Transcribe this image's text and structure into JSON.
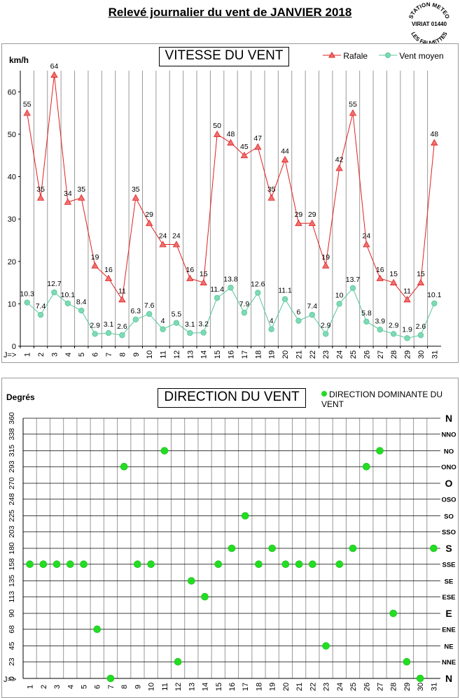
{
  "page": {
    "title": "Relevé journalier du vent de JANVIER 2018",
    "stamp": {
      "top": "STATION METEO",
      "middle": "VIRIAT 01440",
      "bottom": "LES FAUVETTES"
    }
  },
  "colors": {
    "rafale": "#e02020",
    "rafale_marker": "#f07070",
    "vent_moyen": "#55c799",
    "vent_moyen_marker": "#7fd9b4",
    "direction": "#22dd22",
    "grid": "#999999"
  },
  "chart_data": [
    {
      "type": "line",
      "title": "VITESSE DU VENT",
      "ylabel": "km/h",
      "xlabel": "J=>",
      "ylim": [
        0,
        65
      ],
      "yticks": [
        0,
        10,
        20,
        30,
        40,
        50,
        60
      ],
      "grid": "vertical",
      "legend_position": "top-right",
      "x": [
        1,
        2,
        3,
        4,
        5,
        6,
        7,
        8,
        9,
        10,
        11,
        12,
        13,
        14,
        15,
        16,
        17,
        18,
        19,
        20,
        21,
        22,
        23,
        24,
        25,
        26,
        27,
        28,
        29,
        30,
        31
      ],
      "series": [
        {
          "name": "Rafale",
          "marker": "triangle",
          "values": [
            55,
            35,
            64,
            34,
            35,
            19,
            16,
            11,
            35,
            29,
            24,
            24,
            16,
            15,
            50,
            48,
            45,
            47,
            35,
            44,
            29,
            29,
            19,
            42,
            55,
            24,
            16,
            15,
            11,
            15,
            48
          ]
        },
        {
          "name": "Vent moyen",
          "marker": "circle",
          "values": [
            10.3,
            7.4,
            12.7,
            10.1,
            8.4,
            2.9,
            3.1,
            2.6,
            6.3,
            7.6,
            4,
            5.5,
            3.1,
            3.2,
            11.4,
            13.8,
            7.9,
            12.6,
            4,
            11.1,
            6,
            7.4,
            2.9,
            10,
            13.7,
            5.8,
            3.9,
            2.9,
            1.9,
            2.6,
            10.1
          ]
        }
      ]
    },
    {
      "type": "scatter",
      "title": "DIRECTION DU VENT",
      "ylabel": "Degrés",
      "xlabel": "J=>",
      "ylim": [
        0,
        360
      ],
      "yticks": [
        0,
        23,
        45,
        68,
        90,
        113,
        135,
        158,
        180,
        203,
        225,
        248,
        270,
        293,
        315,
        338,
        360
      ],
      "direction_labels": [
        "N",
        "NNE",
        "NE",
        "ENE",
        "E",
        "ESE",
        "SE",
        "SSE",
        "S",
        "SSO",
        "SO",
        "OSO",
        "O",
        "ONO",
        "NO",
        "NNO",
        "N"
      ],
      "grid": "both",
      "legend_position": "top-right",
      "x": [
        1,
        2,
        3,
        4,
        5,
        6,
        7,
        8,
        9,
        10,
        11,
        12,
        13,
        14,
        15,
        16,
        17,
        18,
        19,
        20,
        21,
        22,
        23,
        24,
        25,
        26,
        27,
        28,
        29,
        30,
        31
      ],
      "series": [
        {
          "name": "DIRECTION DOMINANTE DU VENT",
          "marker": "circle",
          "values": [
            158,
            158,
            158,
            158,
            158,
            68,
            0,
            293,
            158,
            158,
            315,
            23,
            135,
            113,
            158,
            180,
            225,
            158,
            180,
            158,
            158,
            158,
            45,
            158,
            180,
            293,
            315,
            90,
            23,
            0,
            180
          ]
        }
      ]
    }
  ]
}
